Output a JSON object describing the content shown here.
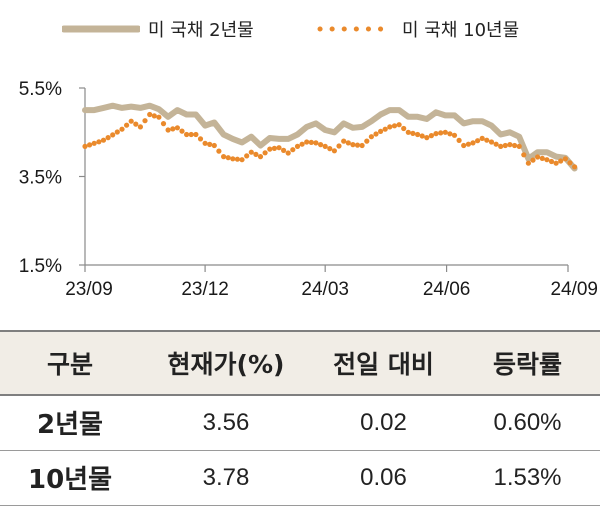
{
  "legend": {
    "series_2y": "미 국채 2년물",
    "series_10y": "미 국채 10년물"
  },
  "colors": {
    "series_2y": "#c4b498",
    "series_10y": "#ea8a2c",
    "axis": "#8a8a8a",
    "table_header_bg": "#f1ede6"
  },
  "chart_data": {
    "type": "line",
    "ylim": [
      1.5,
      5.5
    ],
    "yticks": [
      "5.5%",
      "3.5%",
      "1.5%"
    ],
    "ytick_values": [
      5.5,
      3.5,
      1.5
    ],
    "xticks": [
      "23/09",
      "23/12",
      "24/03",
      "24/06",
      "24/09"
    ],
    "xtick_dates": [
      "2023-09-01",
      "2023-12-01",
      "2024-03-01",
      "2024-06-01",
      "2024-09-01"
    ],
    "x": [
      "2023-09-01",
      "2023-09-08",
      "2023-09-15",
      "2023-09-22",
      "2023-09-29",
      "2023-10-06",
      "2023-10-13",
      "2023-10-20",
      "2023-10-27",
      "2023-11-03",
      "2023-11-10",
      "2023-11-17",
      "2023-11-24",
      "2023-12-01",
      "2023-12-08",
      "2023-12-15",
      "2023-12-22",
      "2023-12-29",
      "2024-01-05",
      "2024-01-12",
      "2024-01-19",
      "2024-01-26",
      "2024-02-02",
      "2024-02-09",
      "2024-02-16",
      "2024-02-23",
      "2024-03-01",
      "2024-03-08",
      "2024-03-15",
      "2024-03-22",
      "2024-03-29",
      "2024-04-05",
      "2024-04-12",
      "2024-04-19",
      "2024-04-26",
      "2024-05-03",
      "2024-05-10",
      "2024-05-17",
      "2024-05-24",
      "2024-05-31",
      "2024-06-07",
      "2024-06-14",
      "2024-06-21",
      "2024-06-28",
      "2024-07-05",
      "2024-07-12",
      "2024-07-19",
      "2024-07-26",
      "2024-08-02",
      "2024-08-09",
      "2024-08-16",
      "2024-08-23",
      "2024-08-30",
      "2024-09-06"
    ],
    "series": [
      {
        "name": "미 국채 2년물",
        "values": [
          5.0,
          5.0,
          5.05,
          5.1,
          5.05,
          5.08,
          5.05,
          5.1,
          5.02,
          4.85,
          5.0,
          4.9,
          4.9,
          4.65,
          4.72,
          4.45,
          4.35,
          4.27,
          4.4,
          4.2,
          4.37,
          4.35,
          4.35,
          4.45,
          4.62,
          4.7,
          4.55,
          4.5,
          4.7,
          4.6,
          4.62,
          4.75,
          4.9,
          5.0,
          5.0,
          4.85,
          4.85,
          4.8,
          4.95,
          4.88,
          4.88,
          4.7,
          4.75,
          4.75,
          4.65,
          4.45,
          4.5,
          4.4,
          3.9,
          4.05,
          4.05,
          3.95,
          3.92,
          3.68
        ]
      },
      {
        "name": "미 국채 10년물",
        "values": [
          4.18,
          4.25,
          4.32,
          4.44,
          4.57,
          4.75,
          4.62,
          4.9,
          4.84,
          4.55,
          4.6,
          4.45,
          4.45,
          4.25,
          4.2,
          3.95,
          3.9,
          3.88,
          4.05,
          3.95,
          4.12,
          4.15,
          4.03,
          4.18,
          4.28,
          4.26,
          4.18,
          4.08,
          4.3,
          4.22,
          4.2,
          4.4,
          4.52,
          4.62,
          4.67,
          4.5,
          4.45,
          4.38,
          4.47,
          4.5,
          4.43,
          4.2,
          4.26,
          4.36,
          4.28,
          4.18,
          4.22,
          4.18,
          3.8,
          3.94,
          3.88,
          3.8,
          3.9,
          3.72
        ]
      }
    ]
  },
  "table": {
    "headers": [
      "구분",
      "현재가(%)",
      "전일 대비",
      "등락률"
    ],
    "rows": [
      [
        "2년물",
        "3.56",
        "0.02",
        "0.60%"
      ],
      [
        "10년물",
        "3.78",
        "0.06",
        "1.53%"
      ]
    ]
  }
}
